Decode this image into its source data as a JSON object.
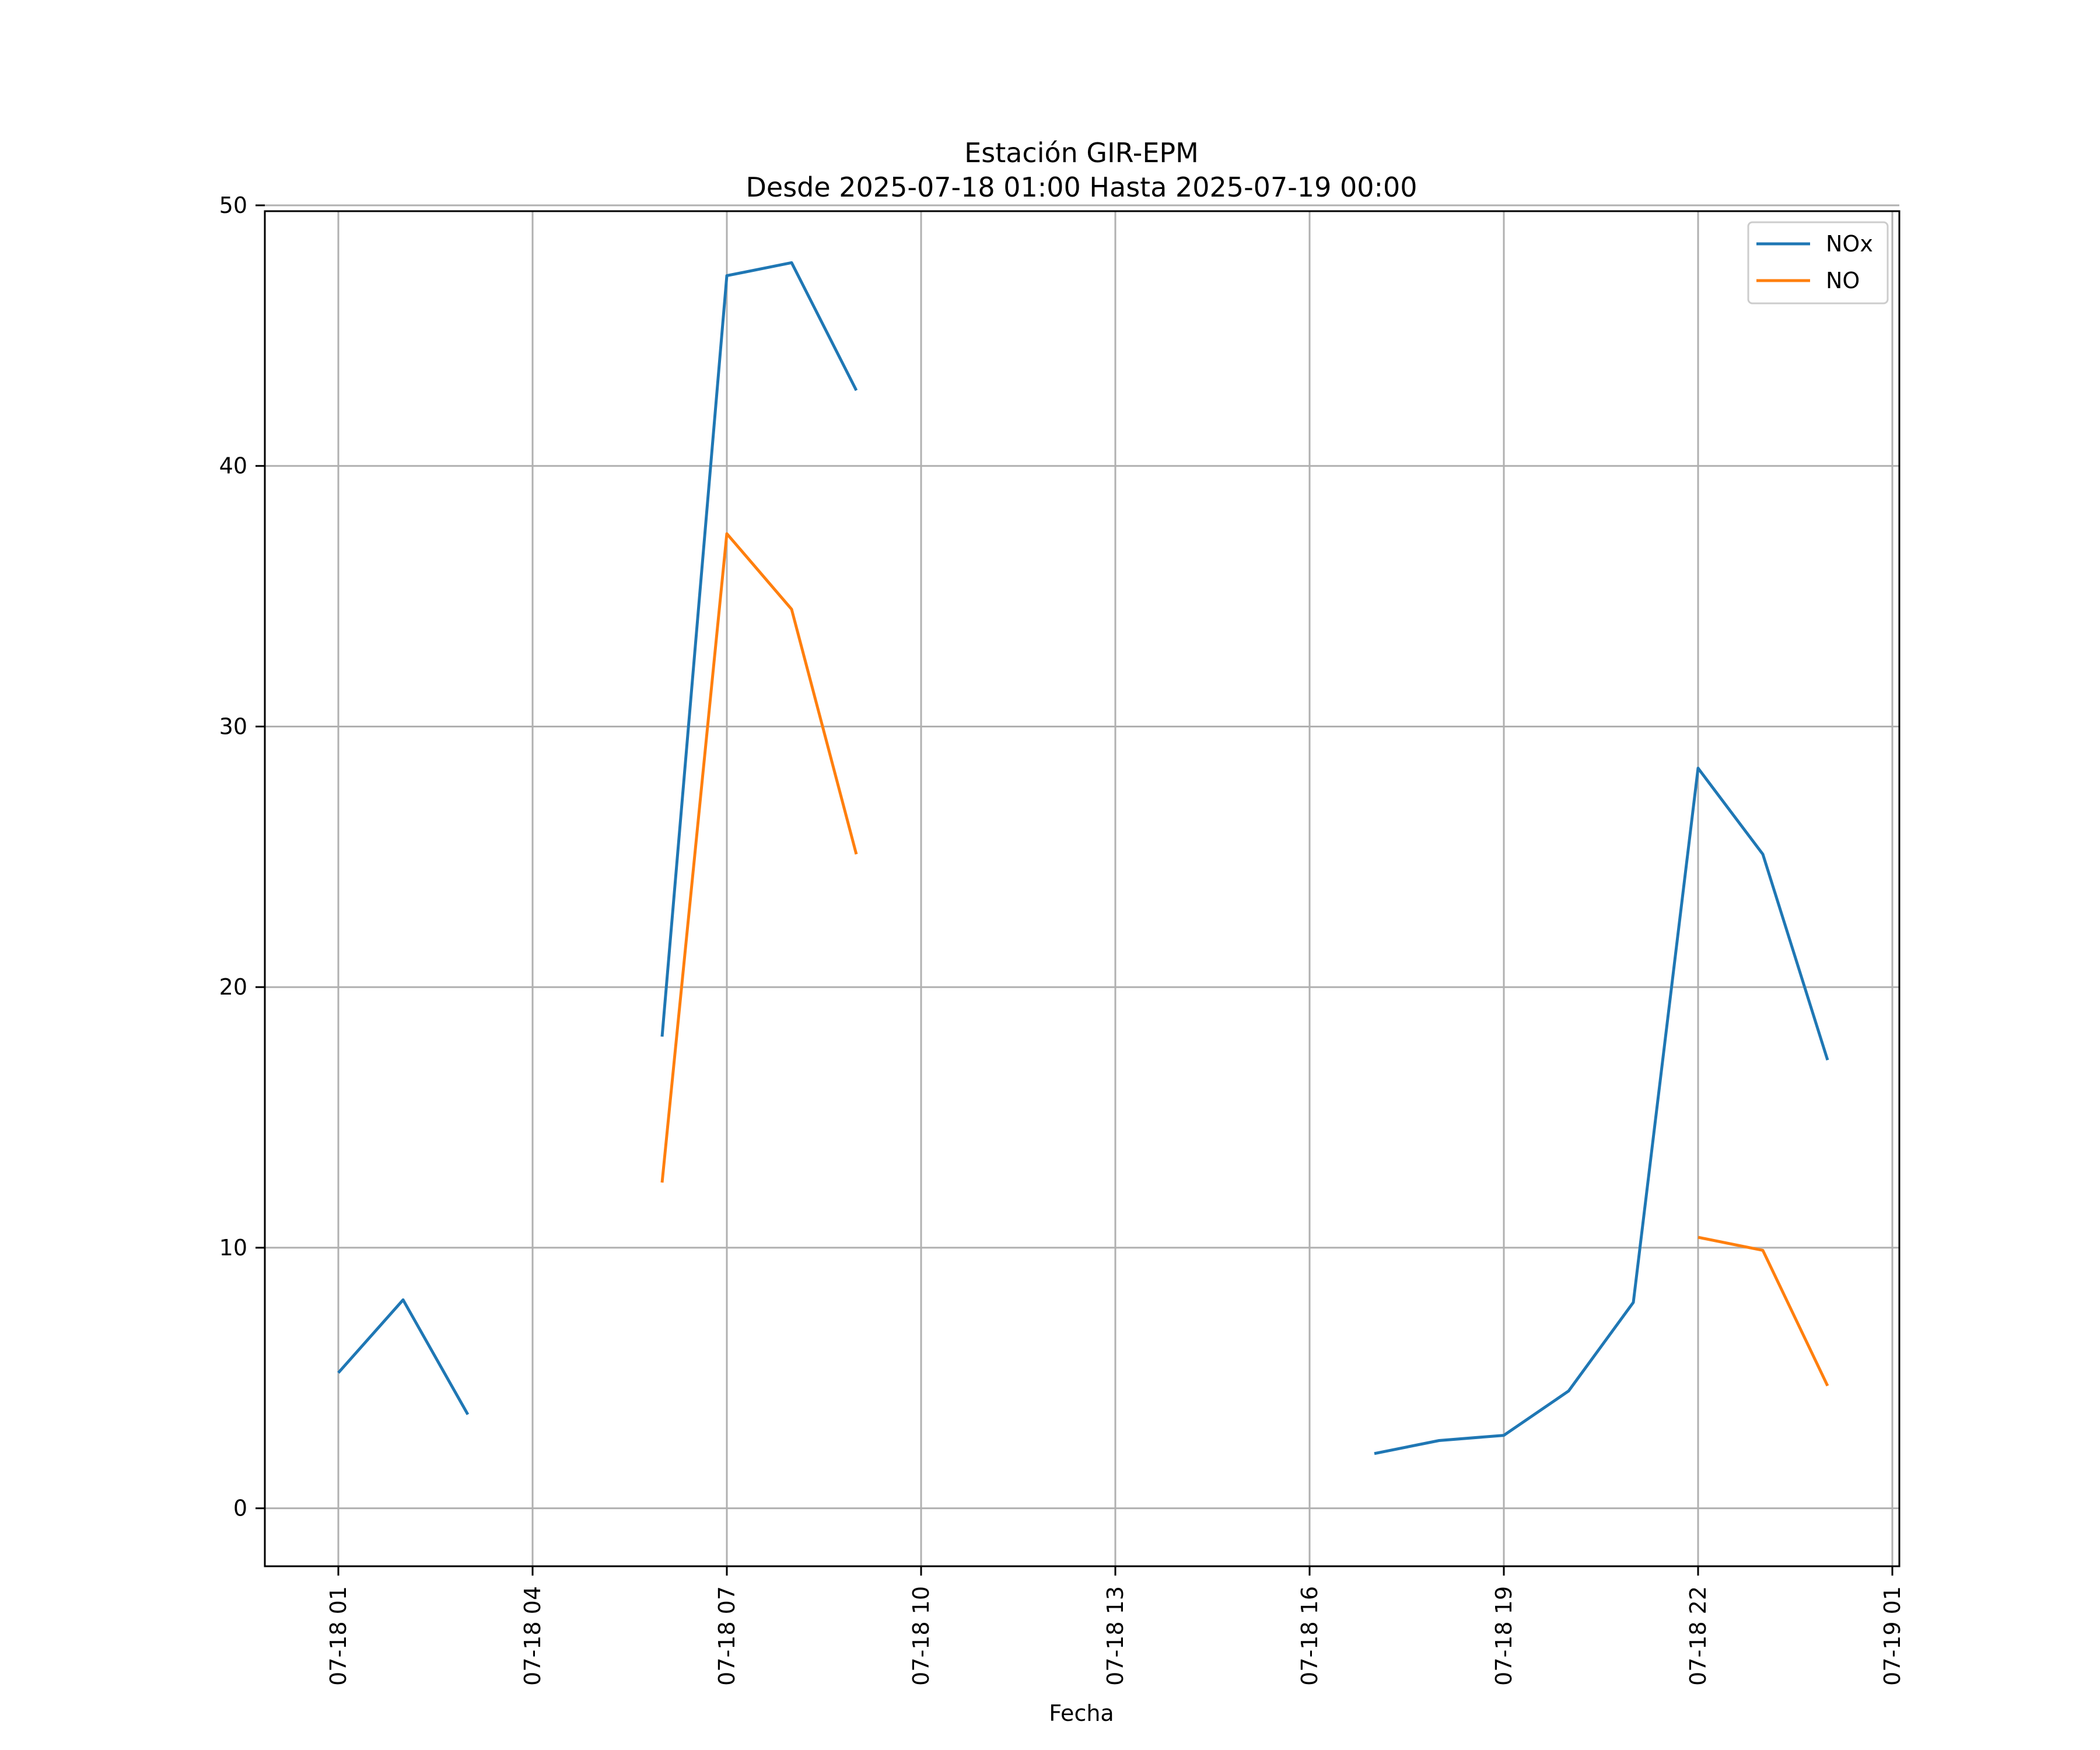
{
  "chart_data": {
    "type": "line",
    "title": "Estación GIR-EPM",
    "subtitle": "Desde 2025-07-18 01:00 Hasta 2025-07-19 00:00",
    "xlabel": "Fecha",
    "ylabel": "",
    "x_range": [
      "2025-07-18 00:00",
      "2025-07-19 01:00"
    ],
    "ylim": [
      -2,
      50
    ],
    "y_ticks": [
      0,
      10,
      20,
      30,
      40,
      50
    ],
    "x_ticks": [
      {
        "label": "07-18 01",
        "time": "2025-07-18 01:00"
      },
      {
        "label": "07-18 04",
        "time": "2025-07-18 04:00"
      },
      {
        "label": "07-18 07",
        "time": "2025-07-18 07:00"
      },
      {
        "label": "07-18 10",
        "time": "2025-07-18 10:00"
      },
      {
        "label": "07-18 13",
        "time": "2025-07-18 13:00"
      },
      {
        "label": "07-18 16",
        "time": "2025-07-18 16:00"
      },
      {
        "label": "07-18 19",
        "time": "2025-07-18 19:00"
      },
      {
        "label": "07-18 22",
        "time": "2025-07-18 22:00"
      },
      {
        "label": "07-19 01",
        "time": "2025-07-19 01:00"
      }
    ],
    "grid": true,
    "legend_position": "top-right",
    "series": [
      {
        "name": "NOx",
        "color": "#1f77b4",
        "points": [
          {
            "time": "2025-07-18 01:00",
            "value": 5.2
          },
          {
            "time": "2025-07-18 02:00",
            "value": 8.0
          },
          {
            "time": "2025-07-18 03:00",
            "value": 3.6
          },
          {
            "time": "2025-07-18 04:00",
            "value": null
          },
          {
            "time": "2025-07-18 05:00",
            "value": null
          },
          {
            "time": "2025-07-18 06:00",
            "value": 18.1
          },
          {
            "time": "2025-07-18 07:00",
            "value": 47.3
          },
          {
            "time": "2025-07-18 08:00",
            "value": 47.8
          },
          {
            "time": "2025-07-18 09:00",
            "value": 42.9
          },
          {
            "time": "2025-07-18 10:00",
            "value": null
          },
          {
            "time": "2025-07-18 11:00",
            "value": null
          },
          {
            "time": "2025-07-18 12:00",
            "value": null
          },
          {
            "time": "2025-07-18 13:00",
            "value": null
          },
          {
            "time": "2025-07-18 14:00",
            "value": null
          },
          {
            "time": "2025-07-18 15:00",
            "value": null
          },
          {
            "time": "2025-07-18 16:00",
            "value": null
          },
          {
            "time": "2025-07-18 17:00",
            "value": 2.1
          },
          {
            "time": "2025-07-18 18:00",
            "value": 2.6
          },
          {
            "time": "2025-07-18 19:00",
            "value": 2.8
          },
          {
            "time": "2025-07-18 20:00",
            "value": 4.5
          },
          {
            "time": "2025-07-18 21:00",
            "value": 7.9
          },
          {
            "time": "2025-07-18 22:00",
            "value": 28.4
          },
          {
            "time": "2025-07-18 23:00",
            "value": 25.1
          },
          {
            "time": "2025-07-19 00:00",
            "value": 17.2
          }
        ]
      },
      {
        "name": "NO",
        "color": "#ff7f0e",
        "points": [
          {
            "time": "2025-07-18 01:00",
            "value": null
          },
          {
            "time": "2025-07-18 02:00",
            "value": null
          },
          {
            "time": "2025-07-18 03:00",
            "value": null
          },
          {
            "time": "2025-07-18 04:00",
            "value": null
          },
          {
            "time": "2025-07-18 05:00",
            "value": null
          },
          {
            "time": "2025-07-18 06:00",
            "value": 12.5
          },
          {
            "time": "2025-07-18 07:00",
            "value": 37.4
          },
          {
            "time": "2025-07-18 08:00",
            "value": 34.5
          },
          {
            "time": "2025-07-18 09:00",
            "value": 25.1
          },
          {
            "time": "2025-07-18 10:00",
            "value": null
          },
          {
            "time": "2025-07-18 11:00",
            "value": null
          },
          {
            "time": "2025-07-18 12:00",
            "value": null
          },
          {
            "time": "2025-07-18 13:00",
            "value": null
          },
          {
            "time": "2025-07-18 14:00",
            "value": null
          },
          {
            "time": "2025-07-18 15:00",
            "value": null
          },
          {
            "time": "2025-07-18 16:00",
            "value": null
          },
          {
            "time": "2025-07-18 17:00",
            "value": null
          },
          {
            "time": "2025-07-18 18:00",
            "value": null
          },
          {
            "time": "2025-07-18 19:00",
            "value": null
          },
          {
            "time": "2025-07-18 20:00",
            "value": null
          },
          {
            "time": "2025-07-18 21:00",
            "value": null
          },
          {
            "time": "2025-07-18 22:00",
            "value": 10.4
          },
          {
            "time": "2025-07-18 23:00",
            "value": 9.9
          },
          {
            "time": "2025-07-19 00:00",
            "value": 4.7
          }
        ]
      }
    ]
  }
}
